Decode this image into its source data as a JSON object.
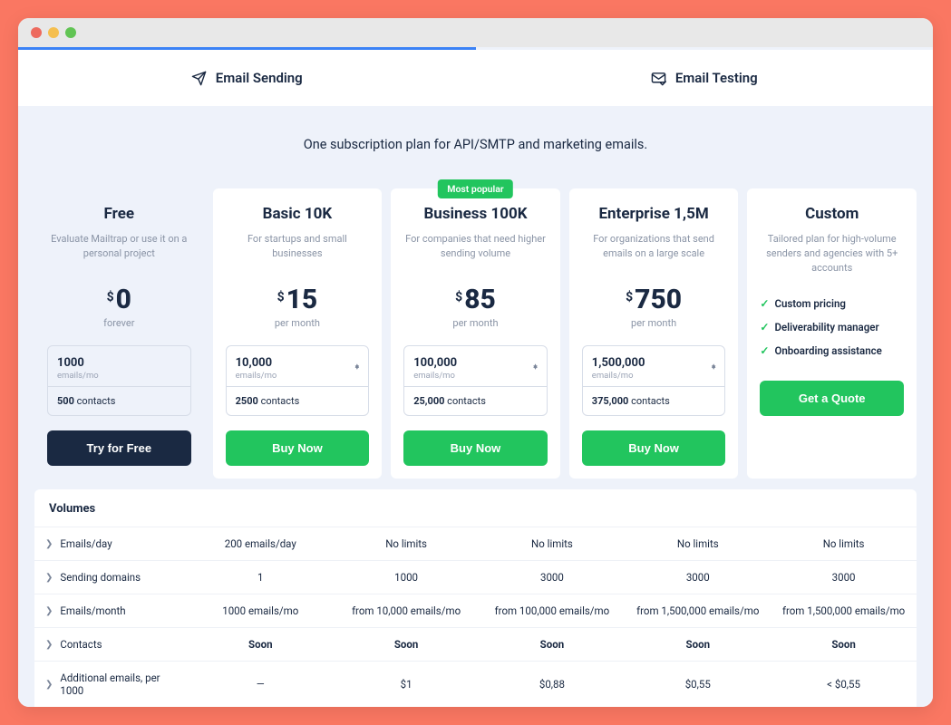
{
  "colors": {
    "page_bg": "#fa7762",
    "content_bg": "#eef2fa",
    "active_tab_border": "#3b82f6",
    "badge_bg": "#22c55e",
    "btn_dark": "#1a2942",
    "btn_green": "#22c55e",
    "dots": [
      "#ed6a5e",
      "#f5bf4f",
      "#61c454"
    ]
  },
  "tabs": [
    {
      "label": "Email Sending",
      "active": true
    },
    {
      "label": "Email Testing",
      "active": false
    }
  ],
  "tagline": "One subscription plan for API/SMTP and marketing emails.",
  "plans": [
    {
      "name": "Free",
      "desc": "Evaluate Mailtrap or use it on a personal project",
      "price": "0",
      "period": "forever",
      "emails": "1000",
      "emails_unit": "emails/mo",
      "contacts": "500",
      "has_stepper": false,
      "btn": "Try for Free",
      "btn_color": "#1a2942"
    },
    {
      "name": "Basic 10K",
      "desc": "For startups and small businesses",
      "price": "15",
      "period": "per month",
      "emails": "10,000",
      "emails_unit": "emails/mo",
      "contacts": "2500",
      "has_stepper": true,
      "btn": "Buy Now",
      "btn_color": "#22c55e"
    },
    {
      "name": "Business 100K",
      "desc": "For companies that need higher sending volume",
      "price": "85",
      "period": "per month",
      "emails": "100,000",
      "emails_unit": "emails/mo",
      "contacts": "25,000",
      "has_stepper": true,
      "badge": "Most popular",
      "btn": "Buy Now",
      "btn_color": "#22c55e"
    },
    {
      "name": "Enterprise 1,5M",
      "desc": "For organizations that send emails on a large scale",
      "price": "750",
      "period": "per month",
      "emails": "1,500,000",
      "emails_unit": "emails/mo",
      "contacts": "375,000",
      "has_stepper": true,
      "btn": "Buy Now",
      "btn_color": "#22c55e"
    },
    {
      "name": "Custom",
      "desc": "Tailored plan for high-volume senders and agencies with 5+ accounts",
      "features": [
        "Custom pricing",
        "Deliverability manager",
        "Onboarding assistance"
      ],
      "btn": "Get a Quote",
      "btn_color": "#22c55e"
    }
  ],
  "table": {
    "title": "Volumes",
    "rows": [
      {
        "label": "Emails/day",
        "cells": [
          "200 emails/day",
          "No limits",
          "No limits",
          "No limits",
          "No limits"
        ]
      },
      {
        "label": "Sending domains",
        "cells": [
          "1",
          "1000",
          "3000",
          "3000",
          "3000"
        ]
      },
      {
        "label": "Emails/month",
        "cells": [
          "1000 emails/mo",
          "from 10,000 emails/mo",
          "from 100,000 emails/mo",
          "from 1,500,000 emails/mo",
          "from 1,500,000 emails/mo"
        ]
      },
      {
        "label": "Contacts",
        "cells": [
          "Soon",
          "Soon",
          "Soon",
          "Soon",
          "Soon"
        ],
        "bold": true
      },
      {
        "label": "Additional emails, per 1000",
        "cells": [
          "—",
          "$1",
          "$0,88",
          "$0,55",
          "< $0,55"
        ]
      }
    ]
  },
  "labels": {
    "currency": "$",
    "contacts_suffix": " contacts"
  }
}
